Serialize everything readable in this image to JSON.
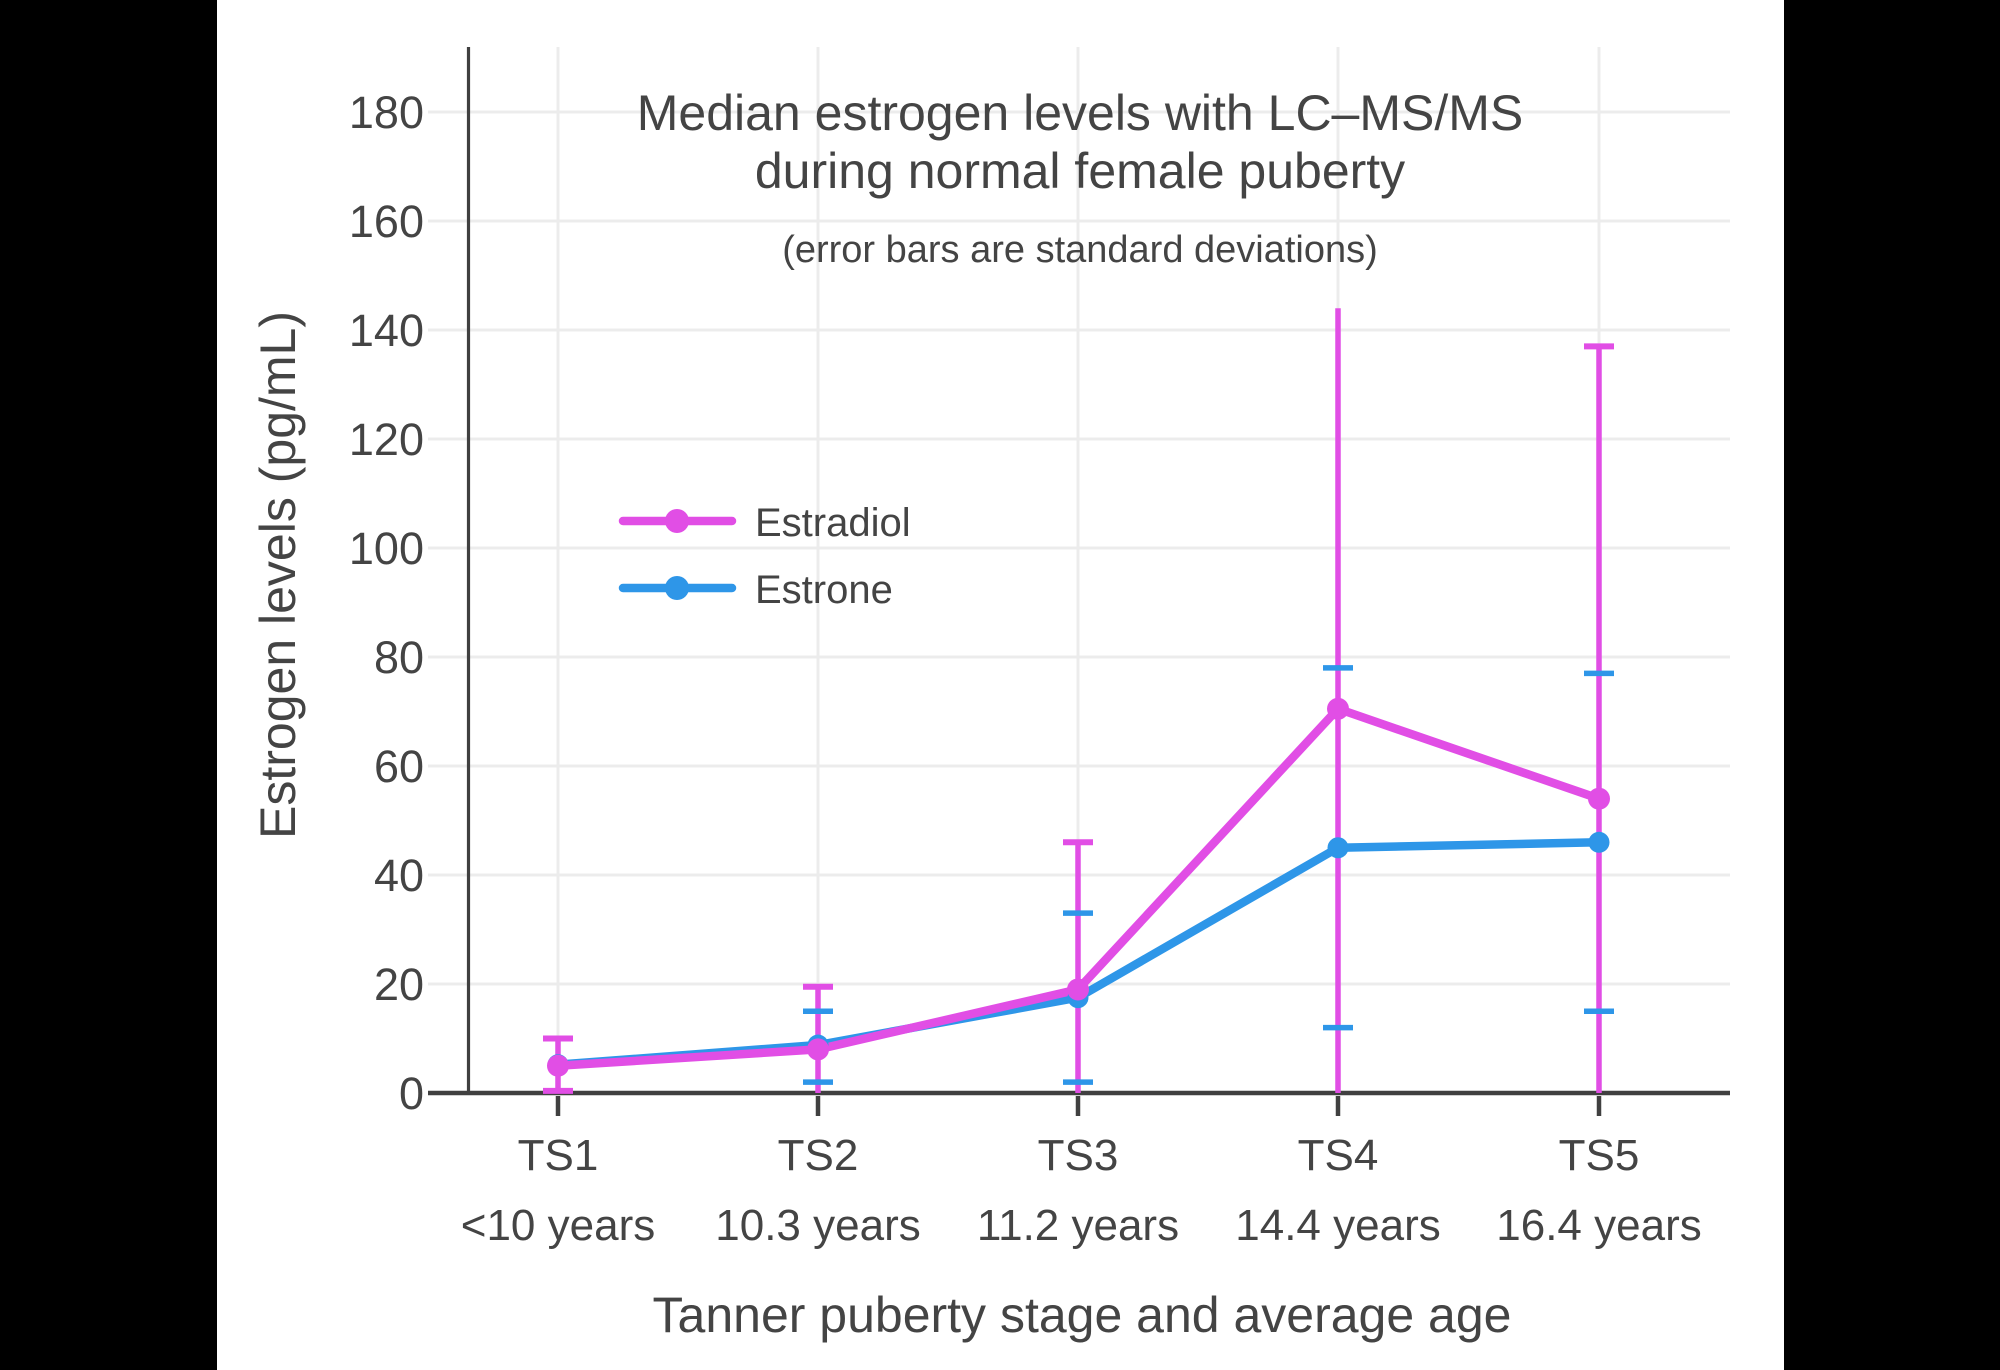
{
  "colors": {
    "background": "#000000",
    "panel": "#FFFFFF",
    "axis": "#404040",
    "text": "#444444",
    "grid": "#ECECEC",
    "estradiol": "#E14EE5",
    "estrone": "#2E96E8"
  },
  "chart_data": {
    "type": "line",
    "title_line1": "Median estrogen levels with LC–MS/MS",
    "title_line2": "during normal female puberty",
    "subtitle": "(error bars are standard deviations)",
    "xlabel": "Tanner puberty stage and average age",
    "ylabel": "Estrogen levels (pg/mL)",
    "ylim": [
      0,
      190
    ],
    "yticks": [
      0,
      20,
      40,
      60,
      80,
      100,
      120,
      140,
      160,
      180
    ],
    "grid": true,
    "legend_position": "inside-upper-left",
    "categories": [
      "TS1",
      "TS2",
      "TS3",
      "TS4",
      "TS5"
    ],
    "category_ages": [
      "<10 years",
      "10.3 years",
      "11.2 years",
      "14.4 years",
      "16.4 years"
    ],
    "series": [
      {
        "name": "Estradiol",
        "color": "#E14EE5",
        "values": [
          5,
          8,
          19,
          70.5,
          54
        ],
        "error_upper_plotted": [
          10,
          19.5,
          46,
          144,
          137
        ],
        "error_lower_plotted": [
          0.4,
          0,
          0,
          0,
          0
        ],
        "lower_clipped_at_zero": [
          false,
          true,
          true,
          true,
          true
        ],
        "upper_cap_visible": [
          true,
          true,
          true,
          false,
          true
        ]
      },
      {
        "name": "Estrone",
        "color": "#2E96E8",
        "values": [
          5.2,
          8.8,
          17.5,
          45,
          46
        ],
        "error_upper_plotted": [
          null,
          15,
          33,
          78,
          77
        ],
        "error_lower_plotted": [
          null,
          2,
          2,
          12,
          15
        ],
        "lower_clipped_at_zero": [
          false,
          false,
          false,
          false,
          false
        ],
        "upper_cap_visible": [
          true,
          true,
          true,
          true,
          true
        ]
      }
    ]
  }
}
